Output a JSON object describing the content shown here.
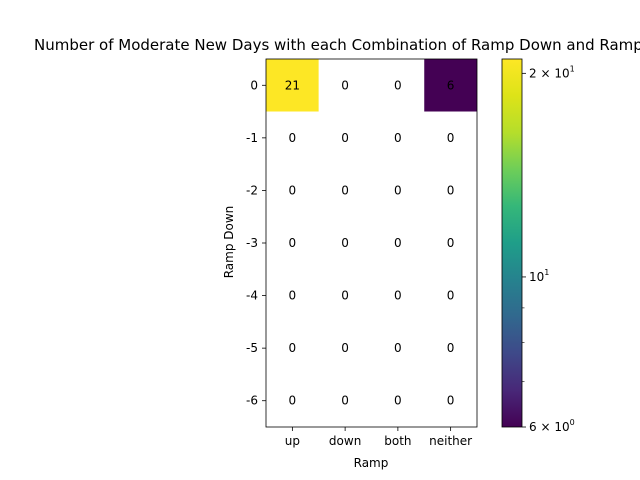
{
  "chart_data": {
    "type": "heatmap",
    "title": "Number of Moderate New Days with each Combination of Ramp Down and Ramp",
    "xlabel": "Ramp",
    "ylabel": "Ramp Down",
    "x_categories": [
      "up",
      "down",
      "both",
      "neither"
    ],
    "y_categories": [
      "0",
      "-1",
      "-2",
      "-3",
      "-4",
      "-5",
      "-6"
    ],
    "values": [
      [
        21,
        0,
        0,
        6
      ],
      [
        0,
        0,
        0,
        0
      ],
      [
        0,
        0,
        0,
        0
      ],
      [
        0,
        0,
        0,
        0
      ],
      [
        0,
        0,
        0,
        0
      ],
      [
        0,
        0,
        0,
        0
      ],
      [
        0,
        0,
        0,
        0
      ]
    ],
    "colorbar": {
      "scale": "log",
      "range": [
        6,
        21
      ],
      "colormap": "viridis",
      "major_ticks": [
        {
          "value": 6,
          "label_base": "6 × 10",
          "label_exp": "0"
        },
        {
          "value": 10,
          "label_base": "10",
          "label_exp": "1"
        },
        {
          "value": 20,
          "label_base": "2 × 10",
          "label_exp": "1"
        }
      ],
      "minor_ticks": [
        7,
        8,
        9
      ]
    },
    "zero_cells_color": "#ffffff",
    "colors": {
      "low": "#440154",
      "high": "#fde725"
    }
  }
}
